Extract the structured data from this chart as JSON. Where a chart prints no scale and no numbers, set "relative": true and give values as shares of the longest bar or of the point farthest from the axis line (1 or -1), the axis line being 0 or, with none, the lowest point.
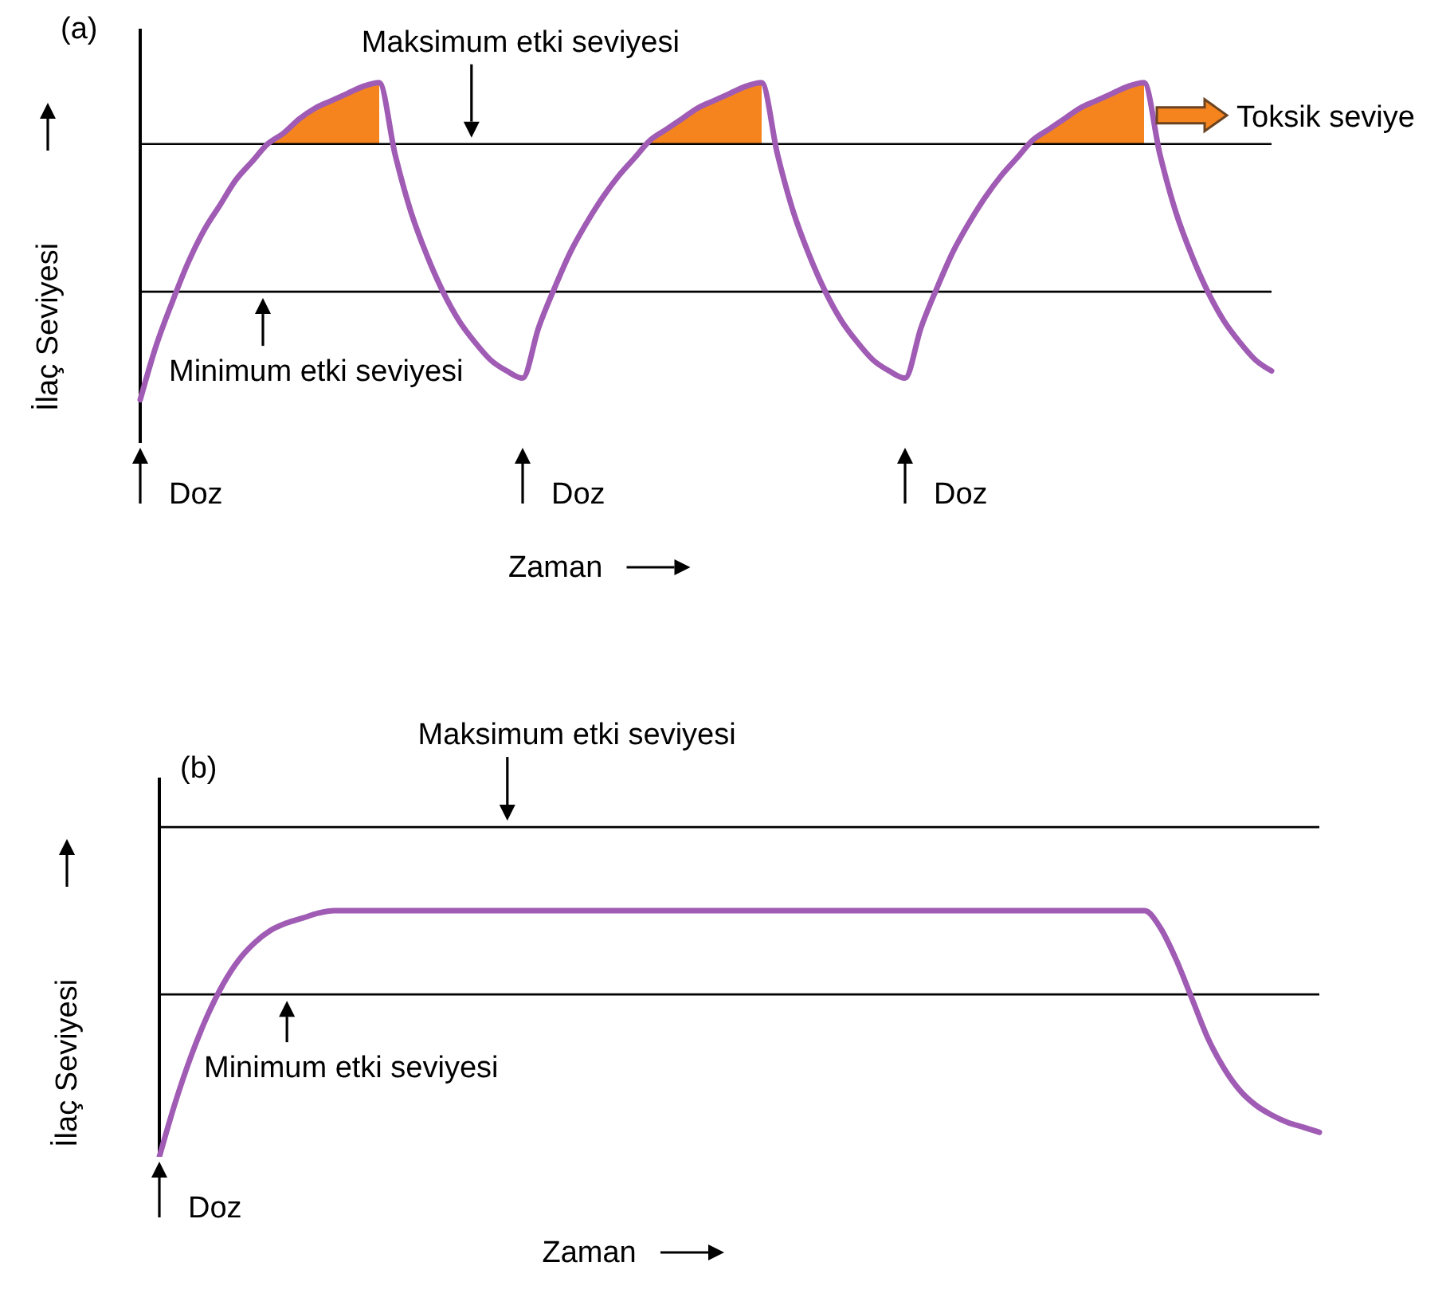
{
  "chart_data": [
    {
      "type": "line",
      "title": "(a)",
      "xlabel": "Zaman",
      "ylabel": "İlaç Seviyesi",
      "relative": true,
      "categories": [
        null,
        null,
        null,
        null,
        null,
        null,
        null,
        null,
        null,
        null,
        null,
        null,
        null,
        null,
        null,
        null,
        null,
        null,
        null,
        null,
        null,
        null,
        null,
        null,
        null,
        null,
        null,
        null,
        null,
        null,
        null,
        null,
        null,
        null,
        null,
        null,
        null,
        null,
        null,
        null,
        null,
        null,
        null,
        null,
        null,
        null,
        null,
        null,
        null,
        null,
        null,
        null,
        null,
        null,
        null,
        null,
        null,
        null,
        null,
        null,
        null,
        null,
        null,
        null,
        null,
        null,
        null,
        null,
        null,
        null,
        null,
        null,
        null,
        null,
        null,
        null,
        null,
        null
      ],
      "series": [
        {
          "color": "#a05cb4",
          "values": [
            0.12,
            0.27,
            0.39,
            0.5,
            0.59,
            0.66,
            0.73,
            0.78,
            0.83,
            0.86,
            0.9,
            0.93,
            0.95,
            0.97,
            0.99,
            1.0,
            0.8,
            0.64,
            0.52,
            0.42,
            0.34,
            0.28,
            0.23,
            0.2,
            0.18,
            0.32,
            0.43,
            0.53,
            0.61,
            0.68,
            0.74,
            0.79,
            0.84,
            0.87,
            0.9,
            0.93,
            0.95,
            0.97,
            0.99,
            1.0,
            0.8,
            0.64,
            0.52,
            0.42,
            0.34,
            0.28,
            0.23,
            0.2,
            0.18,
            0.32,
            0.43,
            0.53,
            0.61,
            0.68,
            0.74,
            0.79,
            0.84,
            0.87,
            0.9,
            0.93,
            0.95,
            0.97,
            0.99,
            1.0,
            0.8,
            0.64,
            0.52,
            0.42,
            0.34,
            0.28,
            0.23,
            0.2,
            null,
            null,
            null,
            null,
            null,
            null
          ],
          "lower": [
            null,
            null,
            null,
            null,
            null,
            null,
            null,
            null,
            0.83,
            0.83,
            0.83,
            0.83,
            0.83,
            0.83,
            0.83,
            0.83,
            null,
            null,
            null,
            null,
            null,
            null,
            null,
            null,
            null,
            null,
            null,
            null,
            null,
            null,
            null,
            null,
            0.83,
            0.83,
            0.83,
            0.83,
            0.83,
            0.83,
            0.83,
            0.83,
            null,
            null,
            null,
            null,
            null,
            null,
            null,
            null,
            null,
            null,
            null,
            null,
            null,
            null,
            null,
            null,
            0.83,
            0.83,
            0.83,
            0.83,
            0.83,
            0.83,
            0.83,
            0.83,
            null,
            null,
            null,
            null,
            null,
            null,
            null,
            null,
            null,
            null,
            null,
            null,
            null,
            null
          ],
          "upper": [
            null,
            null,
            null,
            null,
            null,
            null,
            null,
            null,
            0.83,
            0.86,
            0.9,
            0.93,
            0.95,
            0.97,
            0.99,
            1.0,
            null,
            null,
            null,
            null,
            null,
            null,
            null,
            null,
            null,
            null,
            null,
            null,
            null,
            null,
            null,
            null,
            0.84,
            0.87,
            0.9,
            0.93,
            0.95,
            0.97,
            0.99,
            1.0,
            null,
            null,
            null,
            null,
            null,
            null,
            null,
            null,
            null,
            null,
            null,
            null,
            null,
            null,
            null,
            null,
            0.84,
            0.87,
            0.9,
            0.93,
            0.95,
            0.97,
            0.99,
            1.0,
            null,
            null,
            null,
            null,
            null,
            null,
            null,
            null,
            null,
            null,
            null,
            null,
            null,
            null
          ]
        }
      ],
      "ref_lines": [
        {
          "axis": "y",
          "value": 0.83,
          "label": "Maksimum etki seviyesi",
          "color": "#000000"
        },
        {
          "axis": "y",
          "value": 0.42,
          "label": "Minimum etki seviyesi",
          "color": "#000000"
        }
      ],
      "annotations": [
        "Toksik seviye",
        "Doz",
        "Doz",
        "Doz"
      ]
    },
    {
      "type": "line",
      "title": "(b)",
      "xlabel": "Zaman",
      "ylabel": "İlaç Seviyesi",
      "relative": true,
      "categories": [
        null,
        null,
        null,
        null,
        null,
        null,
        null,
        null,
        null,
        null,
        null,
        null,
        null,
        null,
        null,
        null,
        null,
        null,
        null,
        null,
        null,
        null,
        null,
        null,
        null,
        null,
        null,
        null,
        null,
        null,
        null,
        null,
        null,
        null,
        null,
        null,
        null,
        null,
        null,
        null,
        null,
        null,
        null,
        null,
        null,
        null,
        null,
        null,
        null,
        null,
        null,
        null,
        null,
        null,
        null,
        null,
        null,
        null,
        null,
        null,
        null,
        null,
        null,
        null,
        null,
        null,
        null,
        null,
        null,
        null,
        null,
        null,
        null,
        null
      ],
      "series": [
        {
          "color": "#a05cb4",
          "values": [
            0,
            0.22,
            0.41,
            0.57,
            0.7,
            0.8,
            0.87,
            0.92,
            0.95,
            0.97,
            0.99,
            1.0,
            1.0,
            1.0,
            1.0,
            1.0,
            1.0,
            1.0,
            1.0,
            1.0,
            1.0,
            1.0,
            1.0,
            1.0,
            1.0,
            1.0,
            1.0,
            1.0,
            1.0,
            1.0,
            1.0,
            1.0,
            1.0,
            1.0,
            1.0,
            1.0,
            1.0,
            1.0,
            1.0,
            1.0,
            1.0,
            1.0,
            1.0,
            1.0,
            1.0,
            1.0,
            1.0,
            1.0,
            1.0,
            1.0,
            1.0,
            1.0,
            1.0,
            1.0,
            1.0,
            1.0,
            1.0,
            1.0,
            1.0,
            1.0,
            1.0,
            1.0,
            1.0,
            0.93,
            0.8,
            0.64,
            0.48,
            0.36,
            0.27,
            0.21,
            0.17,
            0.14,
            0.12,
            0.1
          ]
        }
      ],
      "ref_lines": [
        {
          "axis": "y",
          "value": 1.34,
          "label": "Maksimum etki seviyesi",
          "color": "#000000"
        },
        {
          "axis": "y",
          "value": 0.66,
          "label": "Minimum etki seviyesi",
          "color": "#000000"
        }
      ],
      "annotations": [
        "Doz"
      ]
    }
  ]
}
